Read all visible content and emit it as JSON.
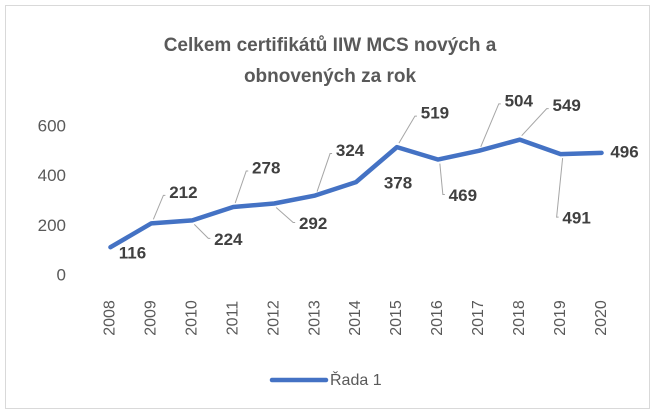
{
  "chart_data": {
    "type": "line",
    "title": [
      "Celkem certifikátů IIW MCS nových a",
      "obnovených za rok"
    ],
    "categories": [
      "2008",
      "2009",
      "2010",
      "2011",
      "2012",
      "2013",
      "2014",
      "2015",
      "2016",
      "2017",
      "2018",
      "2019",
      "2020"
    ],
    "series": [
      {
        "name": "Řada 1",
        "color": "#4472c4",
        "values": [
          116,
          212,
          224,
          278,
          292,
          324,
          378,
          519,
          469,
          504,
          549,
          491,
          496
        ]
      }
    ],
    "ylim": [
      0,
      600
    ],
    "yticks": [
      0,
      200,
      400,
      600
    ],
    "grid": false,
    "legend": "bottom"
  }
}
